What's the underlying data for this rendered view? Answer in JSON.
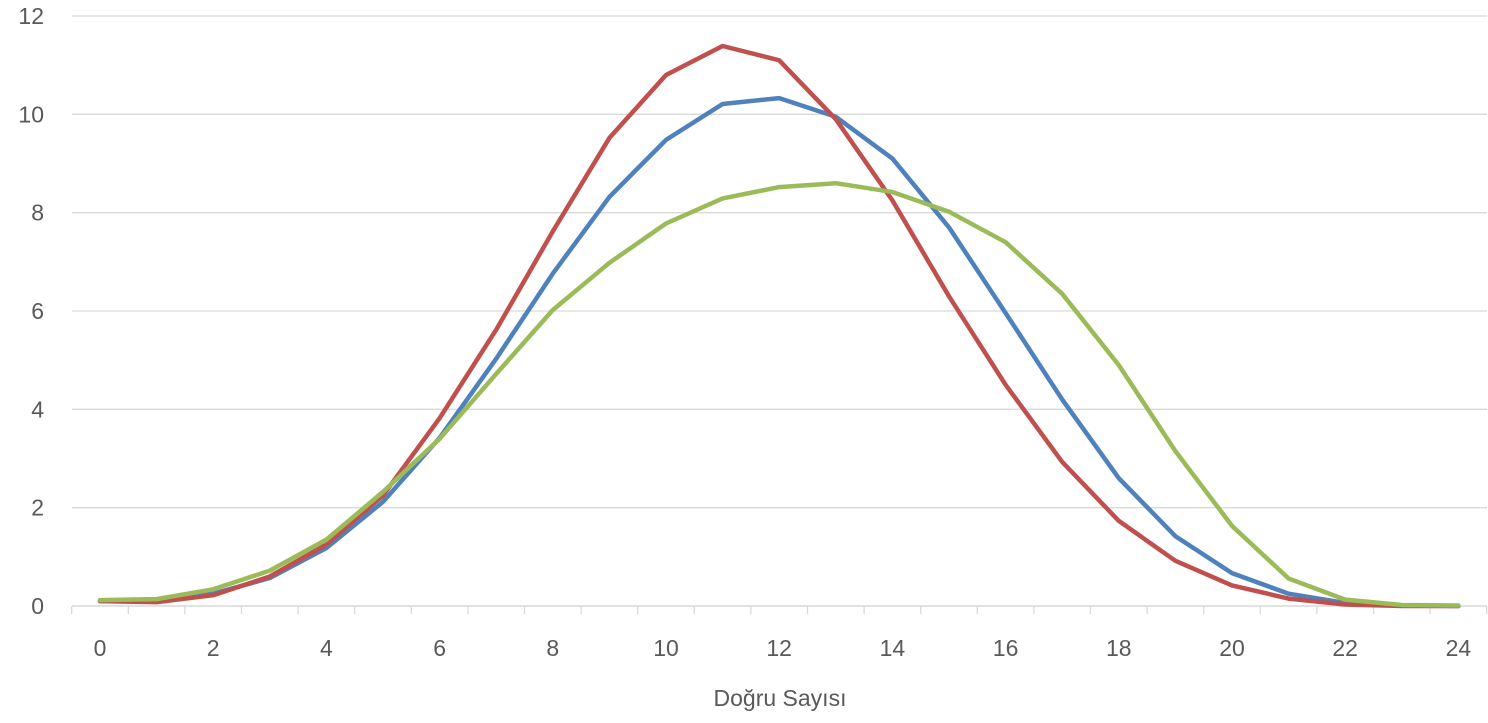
{
  "chart_data": {
    "type": "line",
    "title": "",
    "xlabel": "Doğru Sayısı",
    "ylabel": "",
    "xlim": [
      0,
      24
    ],
    "ylim": [
      0,
      12
    ],
    "x_ticks": [
      0,
      2,
      4,
      6,
      8,
      10,
      12,
      14,
      16,
      18,
      20,
      22,
      24
    ],
    "y_ticks": [
      0,
      2,
      4,
      6,
      8,
      10,
      12
    ],
    "grid": "horizontal",
    "legend": "none",
    "x": [
      0,
      1,
      2,
      3,
      4,
      5,
      6,
      7,
      8,
      9,
      10,
      11,
      12,
      13,
      14,
      15,
      16,
      17,
      18,
      19,
      20,
      21,
      22,
      23,
      24
    ],
    "series": [
      {
        "color": "#4f81bd",
        "values": [
          0.1,
          0.12,
          0.25,
          0.57,
          1.18,
          2.12,
          3.42,
          5.03,
          6.76,
          8.32,
          9.48,
          10.21,
          10.33,
          9.95,
          9.1,
          7.7,
          5.96,
          4.2,
          2.6,
          1.42,
          0.67,
          0.25,
          0.06,
          0.01,
          0.0
        ]
      },
      {
        "color": "#c0504d",
        "values": [
          0.1,
          0.08,
          0.22,
          0.6,
          1.25,
          2.25,
          3.82,
          5.62,
          7.62,
          9.52,
          10.8,
          11.39,
          11.1,
          9.9,
          8.25,
          6.3,
          4.5,
          2.93,
          1.73,
          0.92,
          0.42,
          0.15,
          0.03,
          0.0,
          0.0
        ]
      },
      {
        "color": "#9bbb59",
        "values": [
          0.12,
          0.14,
          0.34,
          0.72,
          1.35,
          2.32,
          3.4,
          4.72,
          6.02,
          6.98,
          7.78,
          8.29,
          8.52,
          8.6,
          8.42,
          8.02,
          7.4,
          6.35,
          4.9,
          3.15,
          1.63,
          0.56,
          0.13,
          0.02,
          0.01
        ]
      }
    ]
  },
  "colors": {
    "axis": "#d9d9d9",
    "grid": "#d9d9d9",
    "tick_text": "#595959"
  }
}
